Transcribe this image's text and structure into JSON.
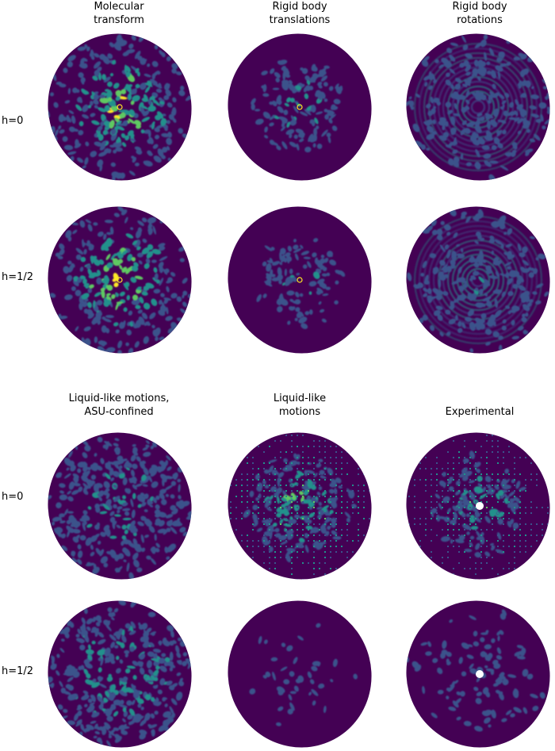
{
  "top_section": {
    "column_titles": [
      "Molecular\ntransform",
      "Rigid body\ntranslations",
      "Rigid body\nrotations"
    ],
    "row_labels": [
      "h=0",
      "h=1/2"
    ]
  },
  "bottom_section": {
    "column_titles": [
      "Liquid-like motions,\nASU-confined",
      "Liquid-like\nmotions",
      "Experimental"
    ],
    "row_labels": [
      "h=0",
      "h=1/2"
    ]
  },
  "colormap": [
    "#440154",
    "#3b528b",
    "#21918c",
    "#5ec962",
    "#fde725"
  ],
  "panels": [
    {
      "name": "molecular-transform-h0",
      "style": "speckle",
      "intensity": 1.0
    },
    {
      "name": "rigid-translations-h0",
      "style": "speckle",
      "intensity": 0.55
    },
    {
      "name": "rigid-rotations-h0",
      "style": "rings",
      "intensity": 0.35
    },
    {
      "name": "molecular-transform-h-half",
      "style": "speckle",
      "intensity": 1.0
    },
    {
      "name": "rigid-translations-h-half",
      "style": "speckle",
      "intensity": 0.5
    },
    {
      "name": "rigid-rotations-h-half",
      "style": "rings",
      "intensity": 0.35
    },
    {
      "name": "liquid-asu-h0",
      "style": "diffuse",
      "intensity": 0.45
    },
    {
      "name": "liquid-motions-h0",
      "style": "grid",
      "intensity": 0.7
    },
    {
      "name": "experimental-h0",
      "style": "grid-hole",
      "intensity": 0.6
    },
    {
      "name": "liquid-asu-h-half",
      "style": "diffuse",
      "intensity": 0.5
    },
    {
      "name": "liquid-motions-h-half",
      "style": "faint",
      "intensity": 0.25
    },
    {
      "name": "experimental-h-half",
      "style": "faint-hole",
      "intensity": 0.3
    }
  ]
}
